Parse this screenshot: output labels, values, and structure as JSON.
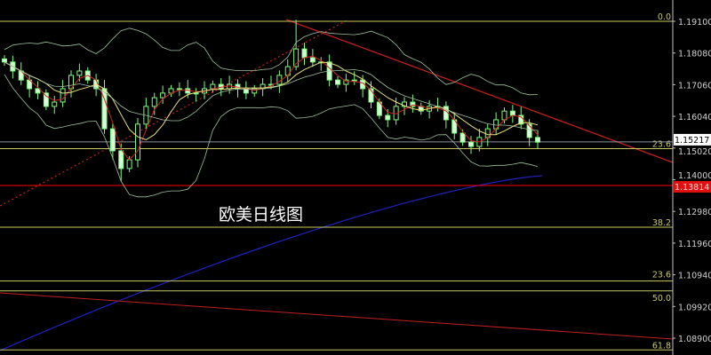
{
  "chart_data": {
    "type": "candlestick",
    "title": "欧美日线图",
    "ylim": [
      1.086,
      1.1975
    ],
    "y_ticks": [
      "1.19100",
      "1.18080",
      "1.17060",
      "1.16040",
      "1.15020",
      "1.14000",
      "1.12980",
      "1.11960",
      "1.10940",
      "1.09920",
      "1.08900"
    ],
    "current_price": {
      "label": "1.15217",
      "value": 1.15217
    },
    "alert_price": {
      "label": "1.13814",
      "value": 1.13814,
      "color": "#ff0000"
    },
    "fib_levels": [
      {
        "label": "0.0",
        "value": 1.191
      },
      {
        "label": "23.6",
        "value": 1.15
      },
      {
        "label": "38.2",
        "value": 1.1247
      },
      {
        "label": "23.6",
        "value": 1.1074
      },
      {
        "label": "50.0",
        "value": 1.1042
      },
      {
        "label": "61.8",
        "value": 1.0852
      }
    ],
    "closes": [
      1.1779,
      1.175,
      1.1721,
      1.1693,
      1.1679,
      1.1636,
      1.165,
      1.1693,
      1.1736,
      1.175,
      1.1721,
      1.1693,
      1.1564,
      1.1493,
      1.1436,
      1.1464,
      1.1579,
      1.1636,
      1.1664,
      1.1679,
      1.1693,
      1.1693,
      1.1679,
      1.1679,
      1.1693,
      1.1707,
      1.1693,
      1.1707,
      1.1693,
      1.1679,
      1.1693,
      1.1707,
      1.1707,
      1.1736,
      1.1764,
      1.1821,
      1.1793,
      1.1779,
      1.1779,
      1.1721,
      1.1707,
      1.1721,
      1.1721,
      1.1693,
      1.165,
      1.1607,
      1.1593,
      1.1636,
      1.165,
      1.1636,
      1.1621,
      1.1636,
      1.1636,
      1.1593,
      1.155,
      1.1521,
      1.1507,
      1.1536,
      1.1564,
      1.1593,
      1.1621,
      1.1607,
      1.1579,
      1.1536,
      1.1521
    ],
    "colors": {
      "candle": "#7CFC7C",
      "fib": "#c8c864",
      "trend": "#c02020",
      "long_ma": "#2020c0",
      "ma_fast": "#d02020",
      "ma_slow": "#e8e080",
      "bands": "#a0c0a0",
      "axis": "#c0c0c0"
    }
  }
}
